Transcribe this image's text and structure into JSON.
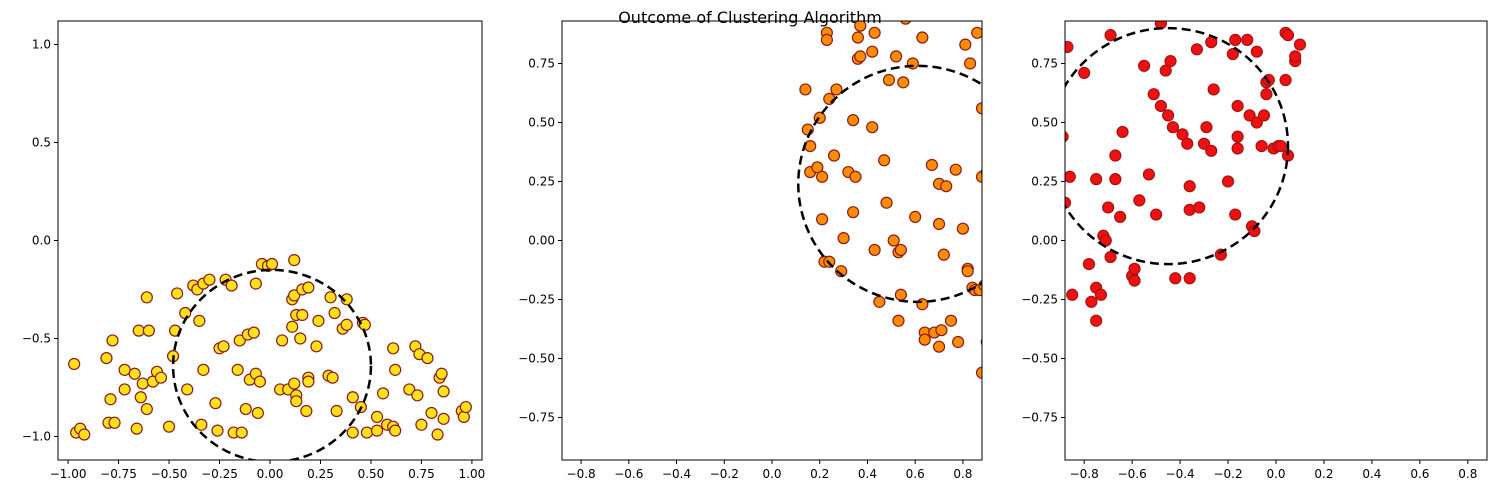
{
  "figure": {
    "suptitle": "Outcome of Clustering Algorithm"
  },
  "chart_data": [
    {
      "type": "scatter",
      "title": "",
      "xlabel": "",
      "ylabel": "",
      "xlim": [
        -1.05,
        1.05
      ],
      "ylim": [
        -1.12,
        1.12
      ],
      "xticks": [
        "−1.00",
        "−0.75",
        "−0.50",
        "−0.25",
        "0.00",
        "0.25",
        "0.50",
        "0.75",
        "1.00"
      ],
      "xtick_values": [
        -1.0,
        -0.75,
        -0.5,
        -0.25,
        0.0,
        0.25,
        0.5,
        0.75,
        1.0
      ],
      "yticks": [
        "−1.0",
        "−0.5",
        "0.0",
        "0.5",
        "1.0"
      ],
      "ytick_values": [
        -1.0,
        -0.5,
        0.0,
        0.5,
        1.0
      ],
      "grid": false,
      "marker_fill": "#ffe11a",
      "marker_edge": "#8b1a1a",
      "circle": {
        "center": [
          0.01,
          -0.64
        ],
        "radius": 0.49
      },
      "points": [
        [
          -0.97,
          -0.63
        ],
        [
          -0.96,
          -0.98
        ],
        [
          -0.94,
          -0.96
        ],
        [
          -0.92,
          -0.99
        ],
        [
          -0.81,
          -0.6
        ],
        [
          -0.8,
          -0.93
        ],
        [
          -0.79,
          -0.81
        ],
        [
          -0.78,
          -0.51
        ],
        [
          -0.77,
          -0.93
        ],
        [
          -0.72,
          -0.66
        ],
        [
          -0.72,
          -0.76
        ],
        [
          -0.67,
          -0.68
        ],
        [
          -0.66,
          -0.96
        ],
        [
          -0.65,
          -0.46
        ],
        [
          -0.64,
          -0.8
        ],
        [
          -0.63,
          -0.73
        ],
        [
          -0.61,
          -0.29
        ],
        [
          -0.61,
          -0.86
        ],
        [
          -0.6,
          -0.46
        ],
        [
          -0.58,
          -0.72
        ],
        [
          -0.56,
          -0.67
        ],
        [
          -0.54,
          -0.7
        ],
        [
          -0.5,
          -0.95
        ],
        [
          -0.48,
          -0.59
        ],
        [
          -0.47,
          -0.46
        ],
        [
          -0.46,
          -0.27
        ],
        [
          -0.42,
          -0.37
        ],
        [
          -0.41,
          -0.76
        ],
        [
          -0.38,
          -0.23
        ],
        [
          -0.36,
          -0.25
        ],
        [
          -0.35,
          -0.41
        ],
        [
          -0.34,
          -0.94
        ],
        [
          -0.33,
          -0.66
        ],
        [
          -0.33,
          -0.22
        ],
        [
          -0.3,
          -0.2
        ],
        [
          -0.27,
          -0.83
        ],
        [
          -0.26,
          -0.97
        ],
        [
          -0.25,
          -0.55
        ],
        [
          -0.23,
          -0.54
        ],
        [
          -0.22,
          -0.2
        ],
        [
          -0.19,
          -0.23
        ],
        [
          -0.18,
          -0.98
        ],
        [
          -0.16,
          -0.66
        ],
        [
          -0.15,
          -0.51
        ],
        [
          -0.14,
          -0.98
        ],
        [
          -0.12,
          -0.86
        ],
        [
          -0.11,
          -0.48
        ],
        [
          -0.1,
          -0.71
        ],
        [
          -0.08,
          -0.47
        ],
        [
          -0.07,
          -0.22
        ],
        [
          -0.07,
          -0.68
        ],
        [
          -0.05,
          -0.72
        ],
        [
          -0.06,
          -0.88
        ],
        [
          -0.04,
          -0.12
        ],
        [
          -0.01,
          -0.13
        ],
        [
          0.01,
          -0.12
        ],
        [
          0.05,
          -0.76
        ],
        [
          0.06,
          -0.51
        ],
        [
          0.09,
          -0.76
        ],
        [
          0.11,
          -0.44
        ],
        [
          0.11,
          -0.3
        ],
        [
          0.12,
          -0.28
        ],
        [
          0.12,
          -0.73
        ],
        [
          0.12,
          -0.1
        ],
        [
          0.13,
          -0.38
        ],
        [
          0.13,
          -0.79
        ],
        [
          0.13,
          -0.82
        ],
        [
          0.15,
          -0.5
        ],
        [
          0.16,
          -0.25
        ],
        [
          0.16,
          -0.38
        ],
        [
          0.18,
          -0.87
        ],
        [
          0.19,
          -0.24
        ],
        [
          0.19,
          -0.7
        ],
        [
          0.19,
          -0.72
        ],
        [
          0.23,
          -0.54
        ],
        [
          0.24,
          -0.41
        ],
        [
          0.29,
          -0.69
        ],
        [
          0.3,
          -0.29
        ],
        [
          0.31,
          -0.7
        ],
        [
          0.32,
          -0.37
        ],
        [
          0.33,
          -0.87
        ],
        [
          0.36,
          -0.45
        ],
        [
          0.38,
          -0.3
        ],
        [
          0.38,
          -0.43
        ],
        [
          0.41,
          -0.8
        ],
        [
          0.41,
          -0.98
        ],
        [
          0.45,
          -0.85
        ],
        [
          0.46,
          -0.42
        ],
        [
          0.47,
          -0.43
        ],
        [
          0.48,
          -0.98
        ],
        [
          0.53,
          -0.9
        ],
        [
          0.53,
          -0.97
        ],
        [
          0.56,
          -0.78
        ],
        [
          0.58,
          -0.94
        ],
        [
          0.61,
          -0.55
        ],
        [
          0.62,
          -0.66
        ],
        [
          0.61,
          -0.95
        ],
        [
          0.62,
          -0.97
        ],
        [
          0.69,
          -0.76
        ],
        [
          0.72,
          -0.54
        ],
        [
          0.73,
          -0.79
        ],
        [
          0.74,
          -0.58
        ],
        [
          0.75,
          -0.94
        ],
        [
          0.78,
          -0.6
        ],
        [
          0.8,
          -0.88
        ],
        [
          0.83,
          -0.99
        ],
        [
          0.84,
          -0.7
        ],
        [
          0.85,
          -0.68
        ],
        [
          0.86,
          -0.91
        ],
        [
          0.86,
          -0.77
        ],
        [
          0.95,
          -0.87
        ],
        [
          0.96,
          -0.9
        ],
        [
          0.97,
          -0.85
        ]
      ]
    },
    {
      "type": "scatter",
      "title": "",
      "xlabel": "",
      "ylabel": "",
      "xlim": [
        -0.88,
        0.88
      ],
      "ylim": [
        -0.93,
        0.93
      ],
      "xticks": [
        "−0.8",
        "−0.6",
        "−0.4",
        "−0.2",
        "0.0",
        "0.2",
        "0.4",
        "0.6",
        "0.8"
      ],
      "xtick_values": [
        -0.8,
        -0.6,
        -0.4,
        -0.2,
        0.0,
        0.2,
        0.4,
        0.6,
        0.8
      ],
      "yticks": [
        "−0.75",
        "−0.50",
        "−0.25",
        "0.00",
        "0.25",
        "0.50",
        "0.75"
      ],
      "ytick_values": [
        -0.75,
        -0.5,
        -0.25,
        0.0,
        0.25,
        0.5,
        0.75
      ],
      "grid": false,
      "marker_fill": "#ff8c00",
      "marker_edge": "#8b1a1a",
      "circle": {
        "center": [
          0.61,
          0.24
        ],
        "radius": 0.5
      },
      "points": [
        [
          0.14,
          0.64
        ],
        [
          0.15,
          0.47
        ],
        [
          0.16,
          0.4
        ],
        [
          0.16,
          0.29
        ],
        [
          0.19,
          0.31
        ],
        [
          0.2,
          0.52
        ],
        [
          0.21,
          0.27
        ],
        [
          0.21,
          0.09
        ],
        [
          0.22,
          -0.09
        ],
        [
          0.23,
          0.88
        ],
        [
          0.23,
          0.85
        ],
        [
          0.24,
          0.6
        ],
        [
          0.24,
          -0.09
        ],
        [
          0.26,
          0.36
        ],
        [
          0.27,
          0.64
        ],
        [
          0.29,
          -0.13
        ],
        [
          0.3,
          0.01
        ],
        [
          0.32,
          0.29
        ],
        [
          0.34,
          0.12
        ],
        [
          0.34,
          0.51
        ],
        [
          0.35,
          0.27
        ],
        [
          0.36,
          0.86
        ],
        [
          0.36,
          0.77
        ],
        [
          0.37,
          0.78
        ],
        [
          0.37,
          0.91
        ],
        [
          0.42,
          0.8
        ],
        [
          0.42,
          0.48
        ],
        [
          0.43,
          0.88
        ],
        [
          0.43,
          -0.04
        ],
        [
          0.45,
          -0.26
        ],
        [
          0.47,
          0.34
        ],
        [
          0.48,
          0.16
        ],
        [
          0.49,
          0.68
        ],
        [
          0.51,
          0.0
        ],
        [
          0.52,
          0.78
        ],
        [
          0.53,
          -0.34
        ],
        [
          0.53,
          -0.05
        ],
        [
          0.54,
          -0.04
        ],
        [
          0.54,
          -0.23
        ],
        [
          0.55,
          0.67
        ],
        [
          0.56,
          0.94
        ],
        [
          0.59,
          0.75
        ],
        [
          0.6,
          0.1
        ],
        [
          0.63,
          0.86
        ],
        [
          0.63,
          -0.27
        ],
        [
          0.64,
          -0.39
        ],
        [
          0.64,
          -0.42
        ],
        [
          0.67,
          0.32
        ],
        [
          0.68,
          -0.39
        ],
        [
          0.7,
          0.07
        ],
        [
          0.7,
          0.24
        ],
        [
          0.7,
          -0.45
        ],
        [
          0.71,
          -0.38
        ],
        [
          0.72,
          -0.06
        ],
        [
          0.73,
          0.23
        ],
        [
          0.75,
          -0.34
        ],
        [
          0.77,
          0.3
        ],
        [
          0.78,
          -0.43
        ],
        [
          0.8,
          0.05
        ],
        [
          0.81,
          0.83
        ],
        [
          0.82,
          -0.12
        ],
        [
          0.82,
          -0.13
        ],
        [
          0.83,
          0.75
        ],
        [
          0.84,
          -0.2
        ],
        [
          0.85,
          -0.21
        ],
        [
          0.86,
          0.88
        ],
        [
          0.87,
          -0.21
        ],
        [
          0.88,
          0.56
        ],
        [
          0.88,
          0.27
        ],
        [
          0.88,
          -0.56
        ],
        [
          0.89,
          -0.19
        ],
        [
          0.9,
          0.29
        ],
        [
          0.9,
          -0.43
        ]
      ]
    },
    {
      "type": "scatter",
      "title": "",
      "xlabel": "",
      "ylabel": "",
      "xlim": [
        -0.88,
        0.88
      ],
      "ylim": [
        -0.93,
        0.93
      ],
      "xticks": [
        "−0.8",
        "−0.6",
        "−0.4",
        "−0.2",
        "0.0",
        "0.2",
        "0.4",
        "0.6",
        "0.8"
      ],
      "xtick_values": [
        -0.8,
        -0.6,
        -0.4,
        -0.2,
        0.0,
        0.2,
        0.4,
        0.6,
        0.8
      ],
      "yticks": [
        "−0.75",
        "−0.50",
        "−0.25",
        "0.00",
        "0.25",
        "0.50",
        "0.75"
      ],
      "ytick_values": [
        -0.75,
        -0.5,
        -0.25,
        0.0,
        0.25,
        0.5,
        0.75
      ],
      "grid": false,
      "marker_fill": "#ee1111",
      "marker_edge": "#aa1111",
      "circle": {
        "center": [
          -0.45,
          0.4
        ],
        "radius": 0.5
      },
      "points": [
        [
          -0.89,
          0.44
        ],
        [
          -0.88,
          0.16
        ],
        [
          -0.87,
          0.82
        ],
        [
          -0.86,
          0.27
        ],
        [
          -0.85,
          -0.23
        ],
        [
          -0.8,
          0.71
        ],
        [
          -0.78,
          -0.1
        ],
        [
          -0.77,
          -0.26
        ],
        [
          -0.75,
          0.26
        ],
        [
          -0.75,
          -0.2
        ],
        [
          -0.75,
          -0.34
        ],
        [
          -0.73,
          -0.23
        ],
        [
          -0.72,
          0.02
        ],
        [
          -0.71,
          0.0
        ],
        [
          -0.7,
          0.14
        ],
        [
          -0.69,
          0.87
        ],
        [
          -0.69,
          -0.07
        ],
        [
          -0.67,
          0.26
        ],
        [
          -0.67,
          0.36
        ],
        [
          -0.65,
          0.1
        ],
        [
          -0.64,
          0.46
        ],
        [
          -0.6,
          -0.15
        ],
        [
          -0.59,
          -0.12
        ],
        [
          -0.59,
          -0.17
        ],
        [
          -0.57,
          0.17
        ],
        [
          -0.55,
          0.74
        ],
        [
          -0.53,
          0.28
        ],
        [
          -0.51,
          0.62
        ],
        [
          -0.5,
          0.11
        ],
        [
          -0.48,
          0.92
        ],
        [
          -0.48,
          0.57
        ],
        [
          -0.46,
          0.72
        ],
        [
          -0.45,
          0.53
        ],
        [
          -0.44,
          0.76
        ],
        [
          -0.43,
          0.48
        ],
        [
          -0.42,
          -0.16
        ],
        [
          -0.39,
          0.45
        ],
        [
          -0.37,
          0.41
        ],
        [
          -0.36,
          0.13
        ],
        [
          -0.36,
          0.23
        ],
        [
          -0.36,
          -0.16
        ],
        [
          -0.33,
          0.81
        ],
        [
          -0.32,
          0.14
        ],
        [
          -0.3,
          0.41
        ],
        [
          -0.29,
          0.48
        ],
        [
          -0.27,
          0.84
        ],
        [
          -0.27,
          0.38
        ],
        [
          -0.26,
          0.64
        ],
        [
          -0.23,
          -0.06
        ],
        [
          -0.2,
          0.25
        ],
        [
          -0.18,
          0.79
        ],
        [
          -0.17,
          0.85
        ],
        [
          -0.17,
          0.11
        ],
        [
          -0.16,
          0.44
        ],
        [
          -0.16,
          0.39
        ],
        [
          -0.16,
          0.57
        ],
        [
          -0.12,
          0.85
        ],
        [
          -0.11,
          0.53
        ],
        [
          -0.1,
          0.06
        ],
        [
          -0.09,
          0.04
        ],
        [
          -0.08,
          0.8
        ],
        [
          -0.08,
          0.5
        ],
        [
          -0.06,
          0.4
        ],
        [
          -0.05,
          0.53
        ],
        [
          -0.04,
          0.67
        ],
        [
          -0.04,
          0.62
        ],
        [
          -0.03,
          0.68
        ],
        [
          -0.01,
          0.39
        ],
        [
          0.01,
          0.4
        ],
        [
          0.02,
          0.4
        ],
        [
          0.04,
          0.68
        ],
        [
          0.04,
          0.88
        ],
        [
          0.05,
          0.87
        ],
        [
          0.05,
          0.36
        ],
        [
          0.08,
          0.76
        ],
        [
          0.08,
          0.78
        ],
        [
          0.1,
          0.83
        ]
      ]
    }
  ]
}
